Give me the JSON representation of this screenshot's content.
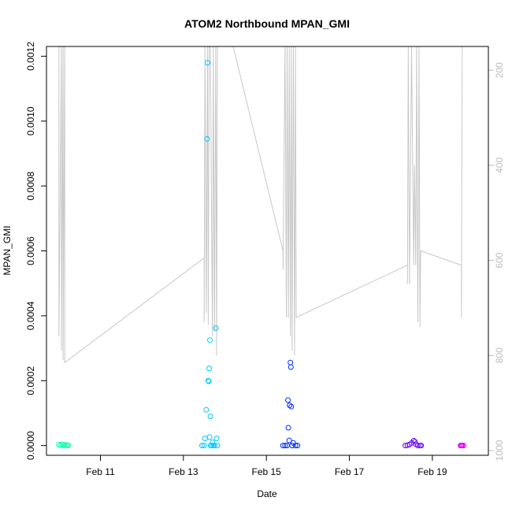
{
  "chart_data": {
    "type": "scatter",
    "title": "ATOM2 Northbound MPAN_GMI",
    "xlabel": "Date",
    "ylabel": "MPAN_GMI",
    "x_ticks": [
      "Feb 11",
      "Feb 13",
      "Feb 15",
      "Feb 17",
      "Feb 19"
    ],
    "x_tick_days": [
      11,
      13,
      15,
      17,
      19
    ],
    "xlim_days": [
      9.7,
      20.35
    ],
    "y_ticks": [
      "0.0000",
      "0.0002",
      "0.0004",
      "0.0006",
      "0.0008",
      "0.0010",
      "0.0012"
    ],
    "ylim": [
      -3e-05,
      0.00123
    ],
    "right_axis_ticks": [
      "200",
      "400",
      "600",
      "800",
      "1000"
    ],
    "right_axis_range": [
      1010,
      150
    ],
    "grid": false,
    "series": [
      {
        "color": "#00ffb0",
        "points": [
          [
            10.0,
            3e-06
          ],
          [
            10.04,
            1e-06
          ],
          [
            10.08,
            4e-06
          ],
          [
            10.12,
            0.0
          ],
          [
            10.16,
            2e-06
          ],
          [
            10.2,
            1e-06
          ],
          [
            10.22,
            0.0
          ]
        ]
      },
      {
        "color": "#00c8ff",
        "points": [
          [
            13.45,
            0.0
          ],
          [
            13.5,
            0.0
          ],
          [
            13.52,
            2.2e-05
          ],
          [
            13.55,
            0.00011
          ],
          [
            13.57,
            0.000945
          ],
          [
            13.58,
            0.00118
          ],
          [
            13.6,
            0.0002
          ],
          [
            13.61,
            0.000198
          ],
          [
            13.62,
            0.000238
          ],
          [
            13.63,
            2.6e-05
          ],
          [
            13.64,
            0.000325
          ],
          [
            13.65,
            9e-05
          ],
          [
            13.66,
            0.0
          ],
          [
            13.68,
            0.0
          ],
          [
            13.7,
            1e-05
          ],
          [
            13.72,
            0.0
          ],
          [
            13.75,
            0.0
          ],
          [
            13.78,
            0.000362
          ],
          [
            13.8,
            2.2e-05
          ],
          [
            13.82,
            0.0
          ]
        ]
      },
      {
        "color": "#0030ff",
        "points": [
          [
            15.4,
            0.0
          ],
          [
            15.45,
            0.0
          ],
          [
            15.5,
            0.0
          ],
          [
            15.52,
            0.00014
          ],
          [
            15.53,
            5.5e-05
          ],
          [
            15.55,
            1.6e-05
          ],
          [
            15.56,
            0.000124
          ],
          [
            15.58,
            0.000256
          ],
          [
            15.59,
            0.000242
          ],
          [
            15.6,
            0.00012
          ],
          [
            15.62,
            0.0
          ],
          [
            15.65,
            8e-06
          ],
          [
            15.7,
            0.0
          ],
          [
            15.75,
            0.0
          ]
        ]
      },
      {
        "color": "#6a00ff",
        "points": [
          [
            18.35,
            0.0
          ],
          [
            18.4,
            1e-06
          ],
          [
            18.45,
            3e-06
          ],
          [
            18.5,
            8e-06
          ],
          [
            18.55,
            1.5e-05
          ],
          [
            18.58,
            1.2e-05
          ],
          [
            18.6,
            4e-06
          ],
          [
            18.65,
            0.0
          ],
          [
            18.7,
            0.0
          ],
          [
            18.73,
            0.0
          ]
        ]
      },
      {
        "color": "#e000ff",
        "points": [
          [
            19.68,
            0.0
          ],
          [
            19.7,
            0.0
          ],
          [
            19.72,
            0.0
          ],
          [
            19.75,
            0.0
          ]
        ]
      }
    ],
    "altitude_line": {
      "color": "#c8c8c8",
      "points": [
        [
          10.0,
          150
        ],
        [
          10.0,
          760
        ],
        [
          10.06,
          150
        ],
        [
          10.06,
          790
        ],
        [
          10.1,
          150
        ],
        [
          10.1,
          810
        ],
        [
          10.14,
          150
        ],
        [
          10.14,
          815
        ],
        [
          13.5,
          595
        ],
        [
          13.5,
          730
        ],
        [
          13.52,
          150
        ],
        [
          13.55,
          710
        ],
        [
          13.58,
          150
        ],
        [
          13.6,
          735
        ],
        [
          13.62,
          150
        ],
        [
          13.65,
          150
        ],
        [
          13.7,
          760
        ],
        [
          13.72,
          150
        ],
        [
          13.75,
          750
        ],
        [
          13.78,
          150
        ],
        [
          13.8,
          800
        ],
        [
          13.82,
          150
        ],
        [
          14.2,
          150
        ],
        [
          15.4,
          580
        ],
        [
          15.4,
          620
        ],
        [
          15.45,
          150
        ],
        [
          15.48,
          720
        ],
        [
          15.5,
          150
        ],
        [
          15.53,
          720
        ],
        [
          15.55,
          150
        ],
        [
          15.58,
          760
        ],
        [
          15.6,
          150
        ],
        [
          15.62,
          790
        ],
        [
          15.65,
          150
        ],
        [
          15.68,
          800
        ],
        [
          15.7,
          150
        ],
        [
          15.72,
          720
        ],
        [
          18.4,
          610
        ],
        [
          18.4,
          650
        ],
        [
          18.42,
          150
        ],
        [
          18.45,
          650
        ],
        [
          18.5,
          150
        ],
        [
          18.55,
          610
        ],
        [
          18.57,
          400
        ],
        [
          18.6,
          610
        ],
        [
          18.62,
          150
        ],
        [
          18.65,
          730
        ],
        [
          18.68,
          150
        ],
        [
          18.7,
          740
        ],
        [
          18.72,
          580
        ],
        [
          19.7,
          610
        ],
        [
          19.7,
          720
        ],
        [
          19.72,
          150
        ]
      ]
    }
  }
}
